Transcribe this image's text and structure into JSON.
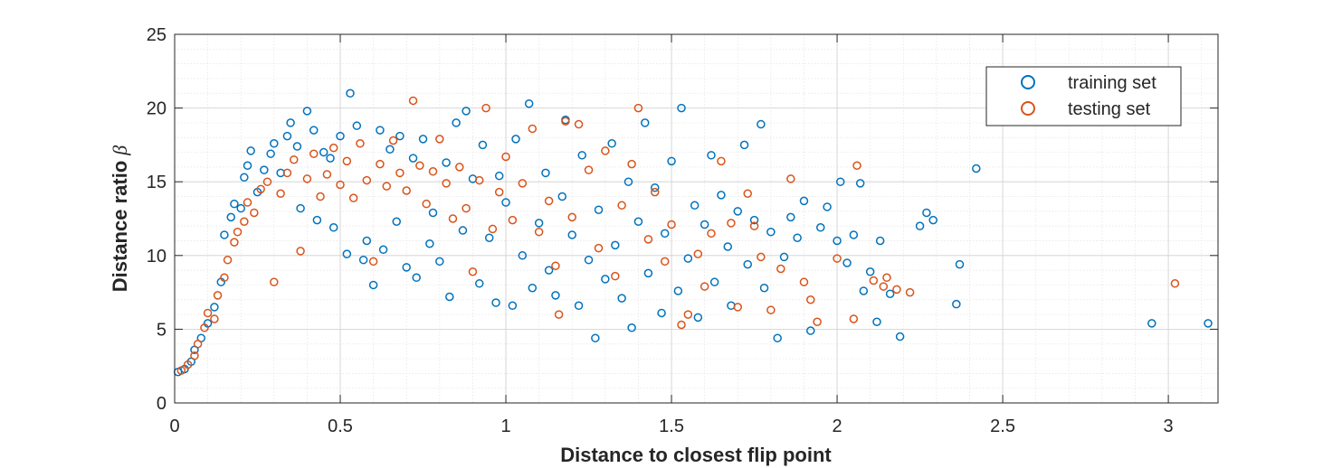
{
  "chart_data": {
    "type": "scatter",
    "xlabel": "Distance to closest flip point",
    "ylabel": "Distance ratio",
    "ylabel_symbol": "β",
    "xlim": [
      0,
      3.15
    ],
    "ylim": [
      0,
      25
    ],
    "xticks": [
      0,
      0.5,
      1,
      1.5,
      2,
      2.5,
      3
    ],
    "xtick_labels": [
      "0",
      "0.5",
      "1",
      "1.5",
      "2",
      "2.5",
      "3"
    ],
    "yticks": [
      0,
      5,
      10,
      15,
      20,
      25
    ],
    "ytick_labels": [
      "0",
      "5",
      "10",
      "15",
      "20",
      "25"
    ],
    "grid": true,
    "minor_grid": true,
    "legend_position": "top-right",
    "series": [
      {
        "name": "training set",
        "color": "#0072BD",
        "marker": "circle-open",
        "points": [
          [
            0.01,
            2.1
          ],
          [
            0.03,
            2.3
          ],
          [
            0.05,
            2.8
          ],
          [
            0.06,
            3.6
          ],
          [
            0.08,
            4.4
          ],
          [
            0.1,
            5.4
          ],
          [
            0.12,
            6.5
          ],
          [
            0.14,
            8.2
          ],
          [
            0.15,
            11.4
          ],
          [
            0.17,
            12.6
          ],
          [
            0.18,
            13.5
          ],
          [
            0.2,
            13.2
          ],
          [
            0.21,
            15.3
          ],
          [
            0.22,
            16.1
          ],
          [
            0.23,
            17.1
          ],
          [
            0.25,
            14.3
          ],
          [
            0.27,
            15.8
          ],
          [
            0.29,
            16.9
          ],
          [
            0.3,
            17.6
          ],
          [
            0.32,
            15.6
          ],
          [
            0.34,
            18.1
          ],
          [
            0.35,
            19.0
          ],
          [
            0.37,
            17.4
          ],
          [
            0.38,
            13.2
          ],
          [
            0.4,
            19.8
          ],
          [
            0.42,
            18.5
          ],
          [
            0.43,
            12.4
          ],
          [
            0.45,
            17.0
          ],
          [
            0.47,
            16.6
          ],
          [
            0.48,
            11.9
          ],
          [
            0.5,
            18.1
          ],
          [
            0.52,
            10.1
          ],
          [
            0.53,
            21.0
          ],
          [
            0.55,
            18.8
          ],
          [
            0.57,
            9.7
          ],
          [
            0.58,
            11.0
          ],
          [
            0.6,
            8.0
          ],
          [
            0.62,
            18.5
          ],
          [
            0.63,
            10.4
          ],
          [
            0.65,
            17.2
          ],
          [
            0.67,
            12.3
          ],
          [
            0.68,
            18.1
          ],
          [
            0.7,
            9.2
          ],
          [
            0.72,
            16.6
          ],
          [
            0.73,
            8.5
          ],
          [
            0.75,
            17.9
          ],
          [
            0.77,
            10.8
          ],
          [
            0.78,
            12.9
          ],
          [
            0.8,
            9.6
          ],
          [
            0.82,
            16.3
          ],
          [
            0.83,
            7.2
          ],
          [
            0.85,
            19.0
          ],
          [
            0.87,
            11.7
          ],
          [
            0.88,
            19.8
          ],
          [
            0.9,
            15.2
          ],
          [
            0.92,
            8.1
          ],
          [
            0.93,
            17.5
          ],
          [
            0.95,
            11.2
          ],
          [
            0.97,
            6.8
          ],
          [
            0.98,
            15.4
          ],
          [
            1.0,
            13.6
          ],
          [
            1.02,
            6.6
          ],
          [
            1.03,
            17.9
          ],
          [
            1.05,
            10.0
          ],
          [
            1.07,
            20.3
          ],
          [
            1.08,
            7.8
          ],
          [
            1.1,
            12.2
          ],
          [
            1.12,
            15.6
          ],
          [
            1.13,
            9.0
          ],
          [
            1.15,
            7.3
          ],
          [
            1.17,
            14.0
          ],
          [
            1.18,
            19.2
          ],
          [
            1.2,
            11.4
          ],
          [
            1.22,
            6.6
          ],
          [
            1.23,
            16.8
          ],
          [
            1.25,
            9.7
          ],
          [
            1.27,
            4.4
          ],
          [
            1.28,
            13.1
          ],
          [
            1.3,
            8.4
          ],
          [
            1.32,
            17.6
          ],
          [
            1.33,
            10.7
          ],
          [
            1.35,
            7.1
          ],
          [
            1.37,
            15.0
          ],
          [
            1.38,
            5.1
          ],
          [
            1.4,
            12.3
          ],
          [
            1.42,
            19.0
          ],
          [
            1.43,
            8.8
          ],
          [
            1.45,
            14.6
          ],
          [
            1.47,
            6.1
          ],
          [
            1.48,
            11.5
          ],
          [
            1.5,
            16.4
          ],
          [
            1.52,
            7.6
          ],
          [
            1.53,
            20.0
          ],
          [
            1.55,
            9.8
          ],
          [
            1.57,
            13.4
          ],
          [
            1.58,
            5.8
          ],
          [
            1.6,
            12.1
          ],
          [
            1.62,
            16.8
          ],
          [
            1.63,
            8.2
          ],
          [
            1.65,
            14.1
          ],
          [
            1.67,
            10.6
          ],
          [
            1.68,
            6.6
          ],
          [
            1.7,
            13.0
          ],
          [
            1.72,
            17.5
          ],
          [
            1.73,
            9.4
          ],
          [
            1.75,
            12.4
          ],
          [
            1.77,
            18.9
          ],
          [
            1.78,
            7.8
          ],
          [
            1.8,
            11.6
          ],
          [
            1.82,
            4.4
          ],
          [
            1.84,
            9.9
          ],
          [
            1.86,
            12.6
          ],
          [
            1.88,
            11.2
          ],
          [
            1.9,
            13.7
          ],
          [
            1.92,
            4.9
          ],
          [
            1.95,
            11.9
          ],
          [
            1.97,
            13.3
          ],
          [
            2.0,
            11.0
          ],
          [
            2.01,
            15.0
          ],
          [
            2.03,
            9.5
          ],
          [
            2.05,
            11.4
          ],
          [
            2.07,
            14.9
          ],
          [
            2.08,
            7.6
          ],
          [
            2.1,
            8.9
          ],
          [
            2.12,
            5.5
          ],
          [
            2.13,
            11.0
          ],
          [
            2.16,
            7.4
          ],
          [
            2.19,
            4.5
          ],
          [
            2.25,
            12.0
          ],
          [
            2.27,
            12.9
          ],
          [
            2.29,
            12.4
          ],
          [
            2.36,
            6.7
          ],
          [
            2.37,
            9.4
          ],
          [
            2.42,
            15.9
          ],
          [
            2.95,
            5.4
          ],
          [
            3.12,
            5.4
          ]
        ]
      },
      {
        "name": "testing set",
        "color": "#D95319",
        "marker": "circle-open",
        "points": [
          [
            0.02,
            2.2
          ],
          [
            0.04,
            2.6
          ],
          [
            0.06,
            3.2
          ],
          [
            0.07,
            4.0
          ],
          [
            0.09,
            5.1
          ],
          [
            0.1,
            6.1
          ],
          [
            0.12,
            5.7
          ],
          [
            0.13,
            7.3
          ],
          [
            0.15,
            8.5
          ],
          [
            0.16,
            9.7
          ],
          [
            0.18,
            10.9
          ],
          [
            0.19,
            11.6
          ],
          [
            0.21,
            12.3
          ],
          [
            0.22,
            13.6
          ],
          [
            0.24,
            12.9
          ],
          [
            0.26,
            14.5
          ],
          [
            0.28,
            15.0
          ],
          [
            0.3,
            8.2
          ],
          [
            0.32,
            14.2
          ],
          [
            0.34,
            15.6
          ],
          [
            0.36,
            16.5
          ],
          [
            0.38,
            10.3
          ],
          [
            0.4,
            15.2
          ],
          [
            0.42,
            16.9
          ],
          [
            0.44,
            14.0
          ],
          [
            0.46,
            15.5
          ],
          [
            0.48,
            17.3
          ],
          [
            0.5,
            14.8
          ],
          [
            0.52,
            16.4
          ],
          [
            0.54,
            13.9
          ],
          [
            0.56,
            17.6
          ],
          [
            0.58,
            15.1
          ],
          [
            0.6,
            9.6
          ],
          [
            0.62,
            16.2
          ],
          [
            0.64,
            14.7
          ],
          [
            0.66,
            17.8
          ],
          [
            0.68,
            15.6
          ],
          [
            0.7,
            14.4
          ],
          [
            0.72,
            20.5
          ],
          [
            0.74,
            16.1
          ],
          [
            0.76,
            13.5
          ],
          [
            0.78,
            15.7
          ],
          [
            0.8,
            17.9
          ],
          [
            0.82,
            14.9
          ],
          [
            0.84,
            12.5
          ],
          [
            0.86,
            16.0
          ],
          [
            0.88,
            13.2
          ],
          [
            0.9,
            8.9
          ],
          [
            0.92,
            15.1
          ],
          [
            0.94,
            20.0
          ],
          [
            0.96,
            11.8
          ],
          [
            0.98,
            14.3
          ],
          [
            1.0,
            16.7
          ],
          [
            1.02,
            12.4
          ],
          [
            1.05,
            14.9
          ],
          [
            1.08,
            18.6
          ],
          [
            1.1,
            11.6
          ],
          [
            1.13,
            13.7
          ],
          [
            1.15,
            9.3
          ],
          [
            1.18,
            19.1
          ],
          [
            1.2,
            12.6
          ],
          [
            1.22,
            18.9
          ],
          [
            1.16,
            6.0
          ],
          [
            1.25,
            15.8
          ],
          [
            1.28,
            10.5
          ],
          [
            1.3,
            17.1
          ],
          [
            1.33,
            8.6
          ],
          [
            1.35,
            13.4
          ],
          [
            1.38,
            16.2
          ],
          [
            1.4,
            20.0
          ],
          [
            1.43,
            11.1
          ],
          [
            1.45,
            14.3
          ],
          [
            1.48,
            9.6
          ],
          [
            1.5,
            12.1
          ],
          [
            1.53,
            5.3
          ],
          [
            1.55,
            6.0
          ],
          [
            1.58,
            10.1
          ],
          [
            1.6,
            7.9
          ],
          [
            1.62,
            11.5
          ],
          [
            1.65,
            16.4
          ],
          [
            1.68,
            12.2
          ],
          [
            1.7,
            6.5
          ],
          [
            1.73,
            14.2
          ],
          [
            1.75,
            12.0
          ],
          [
            1.77,
            9.9
          ],
          [
            1.8,
            6.3
          ],
          [
            1.83,
            9.1
          ],
          [
            1.86,
            15.2
          ],
          [
            1.9,
            8.2
          ],
          [
            1.92,
            7.0
          ],
          [
            1.94,
            5.5
          ],
          [
            2.0,
            9.8
          ],
          [
            2.05,
            5.7
          ],
          [
            2.06,
            16.1
          ],
          [
            2.11,
            8.3
          ],
          [
            2.14,
            7.9
          ],
          [
            2.15,
            8.5
          ],
          [
            2.18,
            7.7
          ],
          [
            2.22,
            7.5
          ],
          [
            3.02,
            8.1
          ]
        ]
      }
    ]
  }
}
